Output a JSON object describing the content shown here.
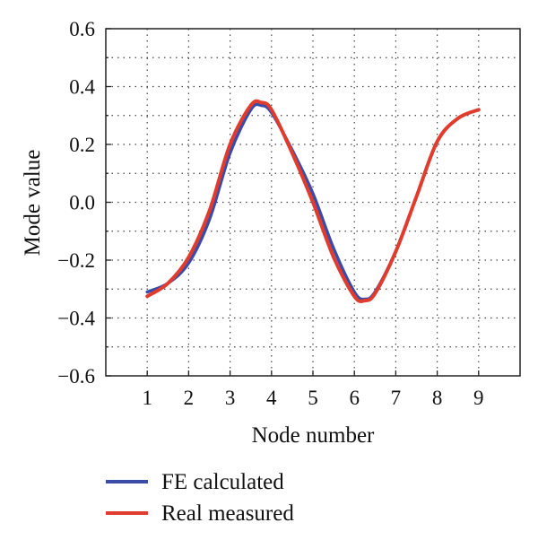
{
  "chart_data": {
    "type": "line",
    "xlabel": "Node number",
    "ylabel": "Mode value",
    "xlim": [
      0,
      10
    ],
    "ylim": [
      -0.6,
      0.6
    ],
    "x_ticks": [
      "1",
      "2",
      "3",
      "4",
      "5",
      "6",
      "7",
      "8",
      "9"
    ],
    "y_ticks": [
      "0.6",
      "0.4",
      "0.2",
      "0.0",
      "−0.2",
      "−0.4",
      "−0.6"
    ],
    "grid": "on (dotted)",
    "legend_position": "bottom-left, below plot",
    "series": [
      {
        "name": "FE calculated",
        "color": "#3b4ba8",
        "x": [
          1,
          1.5,
          2,
          2.5,
          3,
          3.5,
          3.75,
          4,
          4.5,
          5,
          5.5,
          6,
          6.25,
          6.5,
          7,
          7.5,
          8,
          8.5,
          9
        ],
        "y": [
          -0.31,
          -0.28,
          -0.21,
          -0.06,
          0.17,
          0.32,
          0.335,
          0.31,
          0.18,
          0.03,
          -0.16,
          -0.31,
          -0.335,
          -0.31,
          -0.17,
          0.02,
          0.21,
          0.29,
          0.32
        ]
      },
      {
        "name": "Real measured",
        "color": "#e03c2e",
        "x": [
          1,
          1.5,
          2,
          2.5,
          3,
          3.5,
          3.75,
          4,
          4.5,
          5,
          5.5,
          6,
          6.25,
          6.5,
          7,
          7.5,
          8,
          8.5,
          9
        ],
        "y": [
          -0.325,
          -0.28,
          -0.19,
          -0.03,
          0.2,
          0.335,
          0.345,
          0.32,
          0.17,
          0.0,
          -0.19,
          -0.325,
          -0.34,
          -0.315,
          -0.17,
          0.02,
          0.21,
          0.29,
          0.32
        ]
      }
    ]
  }
}
